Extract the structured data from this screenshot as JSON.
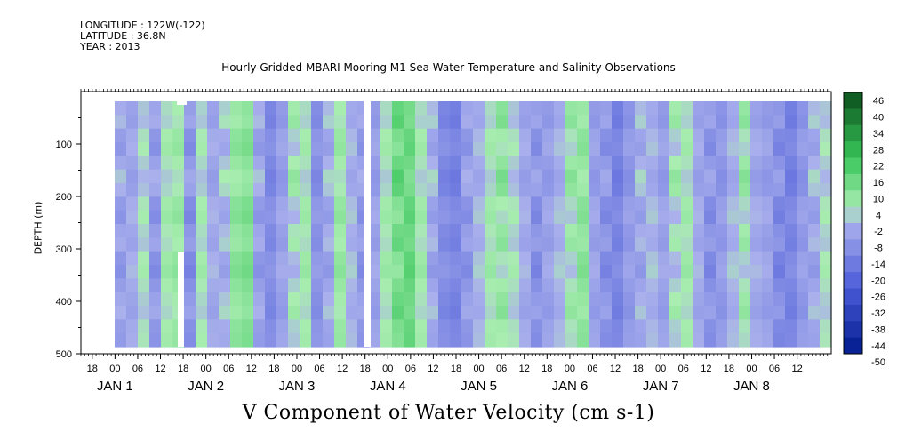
{
  "header": {
    "longitude": "LONGITUDE : 122W(-122)",
    "latitude": "LATITUDE : 36.8N",
    "year": "YEAR : 2013"
  },
  "chart_data": {
    "type": "heatmap",
    "title": "Hourly Gridded MBARI Mooring M1 Sea Water Temperature and Salinity Observations",
    "xlabel": "V Component of Water Velocity (cm s-1)",
    "ylabel": "DEPTH (m)",
    "x_hour_ticks": [
      "18",
      "00",
      "06",
      "12",
      "18",
      "00",
      "06",
      "12",
      "18",
      "00",
      "06",
      "12",
      "18",
      "00",
      "06",
      "12",
      "18",
      "00",
      "06",
      "12",
      "18",
      "00",
      "06",
      "12",
      "18",
      "00",
      "06",
      "12",
      "18",
      "00",
      "06",
      "12"
    ],
    "day_labels": [
      "JAN 1",
      "JAN 2",
      "JAN 3",
      "JAN 4",
      "JAN 5",
      "JAN 6",
      "JAN 7",
      "JAN 8"
    ],
    "y_ticks": [
      "100",
      "200",
      "300",
      "400",
      "500"
    ],
    "ylim": [
      500,
      0
    ],
    "colorbar_ticks": [
      "46",
      "40",
      "34",
      "28",
      "22",
      "16",
      "10",
      "4",
      "-2",
      "-8",
      "-14",
      "-20",
      "-26",
      "-32",
      "-38",
      "-44",
      "-50"
    ],
    "colorbar_range": [
      -50,
      46
    ],
    "colors": {
      "neg_strong": "#001a8c",
      "neg_mid": "#4a5ad8",
      "neg_light": "#aab0ec",
      "pos_light": "#a9edb1",
      "pos_mid": "#37c55a",
      "pos_strong": "#0c4f1c"
    },
    "column_mean_v": [
      -6,
      -4,
      2,
      -8,
      4,
      6,
      -10,
      3,
      -4,
      -2,
      8,
      10,
      -6,
      -12,
      -6,
      2,
      4,
      -10,
      -4,
      6,
      -2,
      -8,
      -6,
      4,
      12,
      14,
      4,
      -4,
      -12,
      -14,
      -8,
      -2,
      4,
      6,
      2,
      -4,
      -10,
      -6,
      -2,
      4,
      8,
      -6,
      -10,
      -14,
      -8,
      -4,
      -2,
      -6,
      2,
      4,
      -4,
      -10,
      -8,
      -2,
      4,
      -4,
      -6,
      -12,
      -14,
      -8,
      -4,
      2
    ],
    "row_anomaly": [
      3,
      5,
      -1,
      -3,
      2,
      6,
      4,
      -2,
      -4,
      1,
      3,
      -3,
      -5,
      -1,
      2,
      4,
      -1,
      -2
    ]
  }
}
